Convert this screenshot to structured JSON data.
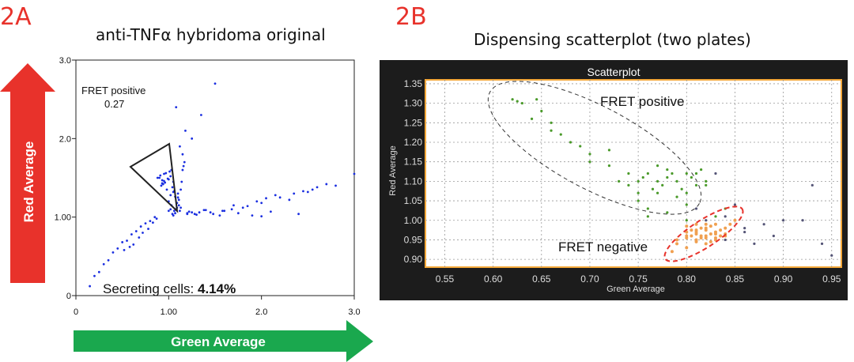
{
  "panels": {
    "a": {
      "label": "2A",
      "title": "anti-TNFα hybridoma original",
      "y_arrow_label": "Red  Average",
      "x_arrow_label": "Green Average",
      "gate_label": "FRET positive",
      "gate_value": "0.27",
      "secreting_prefix": "Secreting cells: ",
      "secreting_value": "4.14%"
    },
    "b": {
      "label": "2B",
      "title": "Dispensing scatterplot (two plates)",
      "window_title": "Scatterplot",
      "fret_positive_label": "FRET positive",
      "fret_negative_label": "FRET negative"
    }
  },
  "colors": {
    "red": "#e8322b",
    "green": "#1aa84e",
    "blue_dots": "#1a2ee0",
    "dark_bg": "#1c1c1c",
    "plot_bg": "#ffffff",
    "plot_border": "#f4a83a",
    "green_dots": "#4a9a2a",
    "orange_dots": "#f0a050"
  },
  "chart_data": [
    {
      "type": "scatter",
      "title": "",
      "xlabel": "",
      "ylabel": "",
      "xlim": [
        0,
        3.0
      ],
      "ylim": [
        0,
        3.0
      ],
      "x_ticks": [
        "0",
        "1.00",
        "2.0",
        "3.0"
      ],
      "y_ticks": [
        "0",
        "1.00",
        "2.0",
        "3.0"
      ],
      "grid": false,
      "series": [
        {
          "x": [
            0.95,
            1.05,
            0.9,
            1.1,
            1.0,
            0.92,
            0.98,
            1.02,
            1.08,
            0.88,
            0.94,
            1.12,
            1.2,
            1.3,
            1.45,
            1.6,
            1.8,
            2.0,
            2.2,
            2.5,
            2.8,
            1.15,
            1.25,
            1.35,
            1.5,
            1.7,
            1.9,
            2.1,
            2.3,
            2.6,
            0.85,
            0.8,
            0.7,
            0.6,
            0.5,
            0.4,
            0.3,
            0.2,
            0.15,
            0.25,
            0.35,
            0.45,
            0.55,
            0.65,
            0.75,
            1.05,
            1.07,
            1.03,
            1.1,
            1.15,
            1.12,
            1.08,
            1.2,
            1.25,
            1.4,
            1.55,
            1.75,
            2.0,
            2.4,
            3.0,
            1.0,
            1.02,
            1.04,
            1.06,
            0.96,
            0.93,
            0.91,
            1.09,
            1.11,
            1.13,
            1.17,
            1.22,
            1.28,
            1.33,
            1.38,
            1.48,
            1.58,
            1.68,
            1.85,
            1.95,
            2.05,
            2.15,
            2.35,
            2.45,
            2.55,
            2.7,
            0.87,
            0.83,
            0.78,
            0.72,
            0.68,
            0.62,
            0.58,
            0.52,
            1.14,
            1.16,
            1.18,
            1.09,
            1.06,
            1.04,
            1.02,
            1.0,
            1.01,
            1.03,
            0.97,
            0.99,
            0.95,
            0.93,
            1.05,
            1.07,
            1.11,
            1.13
          ],
          "y": [
            1.55,
            1.45,
            1.5,
            1.3,
            1.2,
            1.4,
            1.35,
            1.28,
            1.1,
            1.5,
            1.42,
            1.08,
            1.05,
            1.03,
            1.06,
            1.08,
            1.12,
            1.18,
            1.25,
            1.32,
            1.4,
            1.8,
            2.0,
            2.3,
            2.7,
            1.15,
            1.02,
            1.07,
            1.22,
            1.38,
            1.0,
            0.95,
            0.88,
            0.78,
            0.68,
            0.55,
            0.4,
            0.25,
            0.12,
            0.3,
            0.45,
            0.6,
            0.7,
            0.82,
            0.92,
            1.02,
            1.05,
            1.15,
            1.25,
            1.6,
            1.9,
            2.4,
            1.04,
            1.06,
            1.09,
            1.02,
            1.05,
            1.01,
            1.04,
            1.55,
            1.48,
            1.52,
            1.38,
            1.33,
            1.44,
            1.47,
            1.53,
            1.18,
            1.22,
            1.35,
            1.7,
            1.07,
            1.04,
            1.06,
            1.09,
            1.04,
            1.08,
            1.1,
            1.14,
            1.2,
            1.24,
            1.28,
            1.3,
            1.33,
            1.35,
            1.42,
            0.98,
            0.93,
            0.85,
            0.8,
            0.74,
            0.65,
            0.62,
            0.58,
            1.45,
            1.65,
            2.1,
            1.12,
            1.08,
            1.04,
            1.1,
            1.08,
            1.58,
            1.6,
            1.56,
            1.49,
            1.46,
            1.43,
            1.32,
            1.26,
            1.15,
            1.12
          ]
        }
      ]
    },
    {
      "type": "scatter",
      "title": "Scatterplot",
      "xlabel": "Green Average",
      "ylabel": "Red Average",
      "xlim": [
        0.53,
        0.96
      ],
      "ylim": [
        0.88,
        1.36
      ],
      "x_ticks": [
        "0.55",
        "0.60",
        "0.65",
        "0.70",
        "0.75",
        "0.80",
        "0.85",
        "0.90",
        "0.95"
      ],
      "y_ticks": [
        "0.90",
        "0.95",
        "1.00",
        "1.05",
        "1.10",
        "1.15",
        "1.20",
        "1.25",
        "1.30",
        "1.35"
      ],
      "grid": true,
      "series": [
        {
          "x": [
            0.62,
            0.625,
            0.63,
            0.645,
            0.65,
            0.66,
            0.67,
            0.68,
            0.69,
            0.7,
            0.72,
            0.73,
            0.74,
            0.75,
            0.755,
            0.76,
            0.765,
            0.77,
            0.775,
            0.78,
            0.785,
            0.79,
            0.795,
            0.8,
            0.805,
            0.81,
            0.815,
            0.82,
            0.75,
            0.76,
            0.77,
            0.79,
            0.8,
            0.81,
            0.78,
            0.77,
            0.76,
            0.74,
            0.83,
            0.84,
            0.82,
            0.8,
            0.78,
            0.75,
            0.72,
            0.64,
            0.66,
            0.7,
            0.82,
            0.8
          ],
          "y": [
            1.31,
            1.305,
            1.3,
            1.31,
            1.28,
            1.25,
            1.22,
            1.2,
            1.19,
            1.17,
            1.18,
            1.1,
            1.09,
            1.1,
            1.11,
            1.12,
            1.08,
            1.1,
            1.09,
            1.11,
            1.12,
            1.1,
            1.08,
            1.07,
            1.11,
            1.12,
            1.13,
            1.1,
            1.05,
            1.03,
            1.07,
            1.06,
            1.04,
            1.09,
            1.13,
            1.14,
            1.01,
            1.12,
            1.01,
            1.03,
            0.98,
            1.0,
            1.02,
            1.07,
            1.14,
            1.26,
            1.23,
            1.15,
            1.09,
            1.12
          ]
        },
        {
          "x": [
            0.8,
            0.805,
            0.81,
            0.815,
            0.82,
            0.825,
            0.83,
            0.835,
            0.84,
            0.8,
            0.81,
            0.82,
            0.83,
            0.815,
            0.825,
            0.835,
            0.79,
            0.8,
            0.81,
            0.82,
            0.83,
            0.84,
            0.845,
            0.85,
            0.8,
            0.81,
            0.82,
            0.83,
            0.785,
            0.79,
            0.8,
            0.81,
            0.82,
            0.83,
            0.84,
            0.82,
            0.81,
            0.825,
            0.815,
            0.805
          ],
          "y": [
            0.97,
            0.96,
            0.97,
            0.96,
            0.975,
            0.965,
            0.97,
            0.96,
            0.98,
            0.955,
            0.95,
            0.955,
            0.965,
            0.98,
            0.985,
            0.975,
            0.94,
            0.93,
            0.945,
            0.94,
            0.95,
            0.96,
            0.99,
            1.0,
            0.985,
            0.99,
            0.98,
            0.99,
            0.92,
            0.95,
            0.96,
            0.975,
            0.96,
            0.955,
            0.965,
            0.99,
            0.965,
            0.945,
            0.955,
            0.975
          ]
        },
        {
          "x": [
            0.82,
            0.84,
            0.86,
            0.88,
            0.9,
            0.93,
            0.95,
            0.83,
            0.85,
            0.87,
            0.89,
            0.81,
            0.86,
            0.84,
            0.92,
            0.94
          ],
          "y": [
            1.0,
            1.01,
            0.97,
            0.99,
            1.0,
            1.09,
            0.91,
            1.12,
            1.04,
            0.94,
            0.96,
            1.03,
            0.98,
            0.95,
            1.0,
            0.94
          ]
        }
      ]
    }
  ]
}
